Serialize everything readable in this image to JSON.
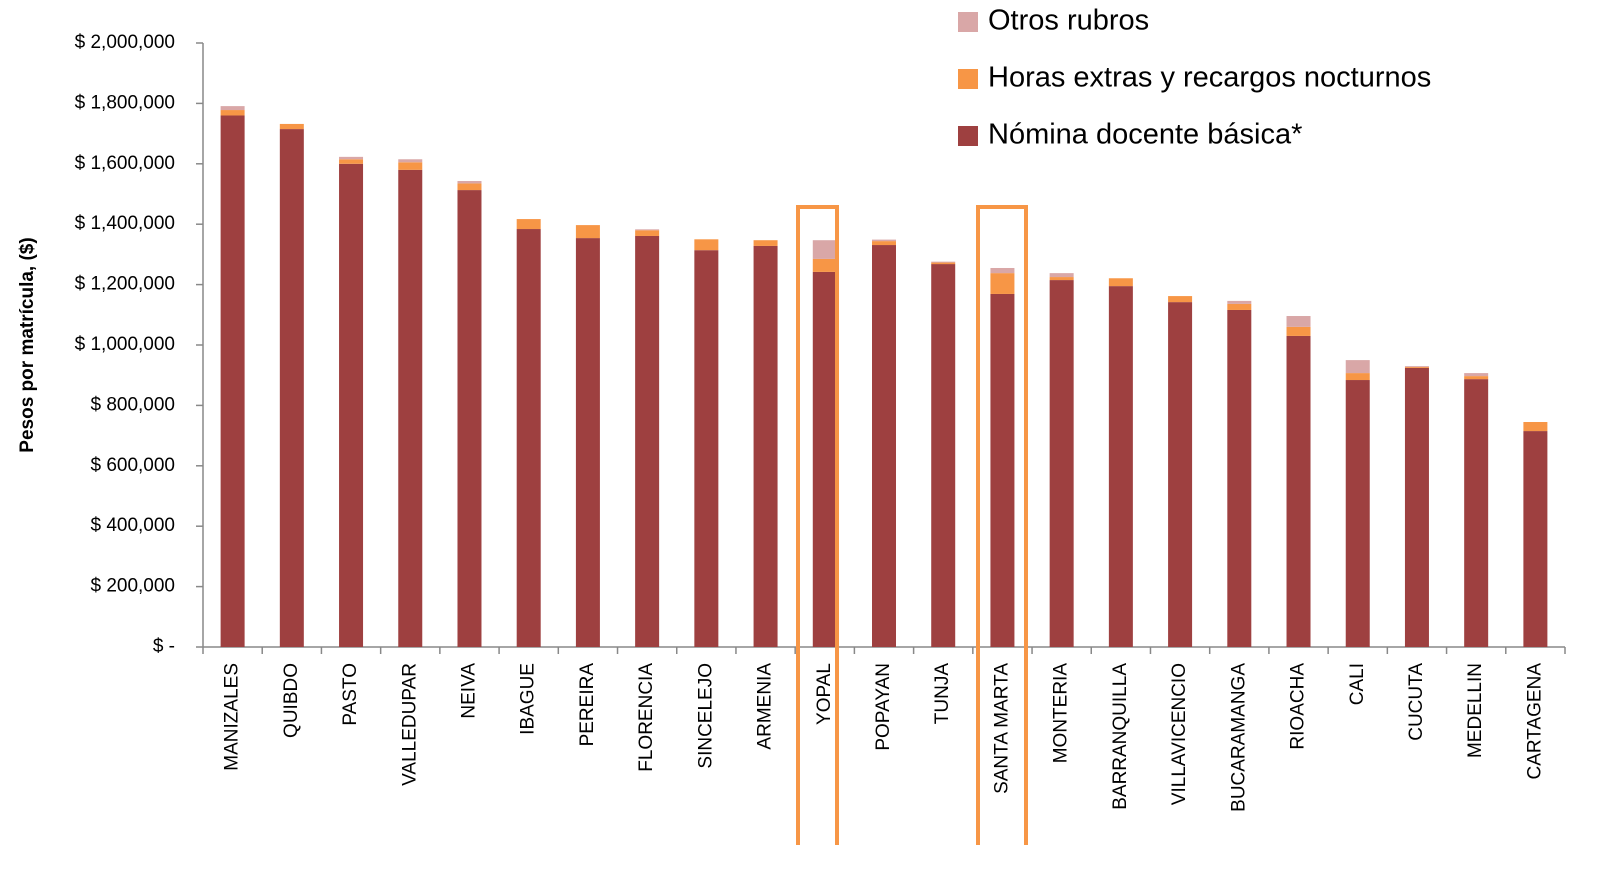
{
  "chart_data": {
    "type": "stacked_bar",
    "y_label": "Pesos por matrícula, ($)",
    "categories": [
      "MANIZALES",
      "QUIBDO",
      "PASTO",
      "VALLEDUPAR",
      "NEIVA",
      "IBAGUE",
      "PEREIRA",
      "FLORENCIA",
      "SINCELEJO",
      "ARMENIA",
      "YOPAL",
      "POPAYAN",
      "TUNJA",
      "SANTA MARTA",
      "MONTERIA",
      "BARRANQUILLA",
      "VILLAVICENCIO",
      "BUCARAMANGA",
      "RIOACHA",
      "CALI",
      "CUCUTA",
      "MEDELLIN",
      "CARTAGENA"
    ],
    "series": [
      {
        "name": "Nómina docente básica*",
        "color": "#9e4040",
        "values": [
          1760000,
          1715000,
          1600000,
          1580000,
          1513000,
          1384000,
          1354000,
          1361000,
          1314000,
          1328000,
          1242000,
          1331000,
          1268000,
          1169000,
          1215000,
          1195000,
          1142000,
          1116000,
          1030000,
          884000,
          924000,
          887000,
          715000
        ]
      },
      {
        "name": "Horas extras y recargos nocturnos",
        "color": "#f79646",
        "values": [
          18000,
          17000,
          15000,
          25000,
          22000,
          33000,
          43000,
          19000,
          36000,
          19000,
          43000,
          13000,
          5000,
          69000,
          10000,
          26000,
          20000,
          20000,
          30000,
          23000,
          3000,
          10000,
          30000
        ]
      },
      {
        "name": "Otros rubros",
        "color": "#d9a7a7",
        "values": [
          13000,
          0,
          8000,
          10000,
          8000,
          0,
          0,
          3000,
          0,
          0,
          62000,
          5000,
          3000,
          17000,
          13000,
          0,
          0,
          10000,
          36000,
          43000,
          3000,
          10000,
          0
        ]
      }
    ],
    "ylim": [
      0,
      2000000
    ],
    "yticks": [
      {
        "value": 0,
        "label": "$ -"
      },
      {
        "value": 200000,
        "label": "$ 200,000"
      },
      {
        "value": 400000,
        "label": "$ 400,000"
      },
      {
        "value": 600000,
        "label": "$ 600,000"
      },
      {
        "value": 800000,
        "label": "$ 800,000"
      },
      {
        "value": 1000000,
        "label": "$ 1,000,000"
      },
      {
        "value": 1200000,
        "label": "$ 1,200,000"
      },
      {
        "value": 1400000,
        "label": "$ 1,400,000"
      },
      {
        "value": 1600000,
        "label": "$ 1,600,000"
      },
      {
        "value": 1800000,
        "label": "$ 1,800,000"
      },
      {
        "value": 2000000,
        "label": "$ 2,000,000"
      }
    ],
    "legend": "top-right"
  }
}
